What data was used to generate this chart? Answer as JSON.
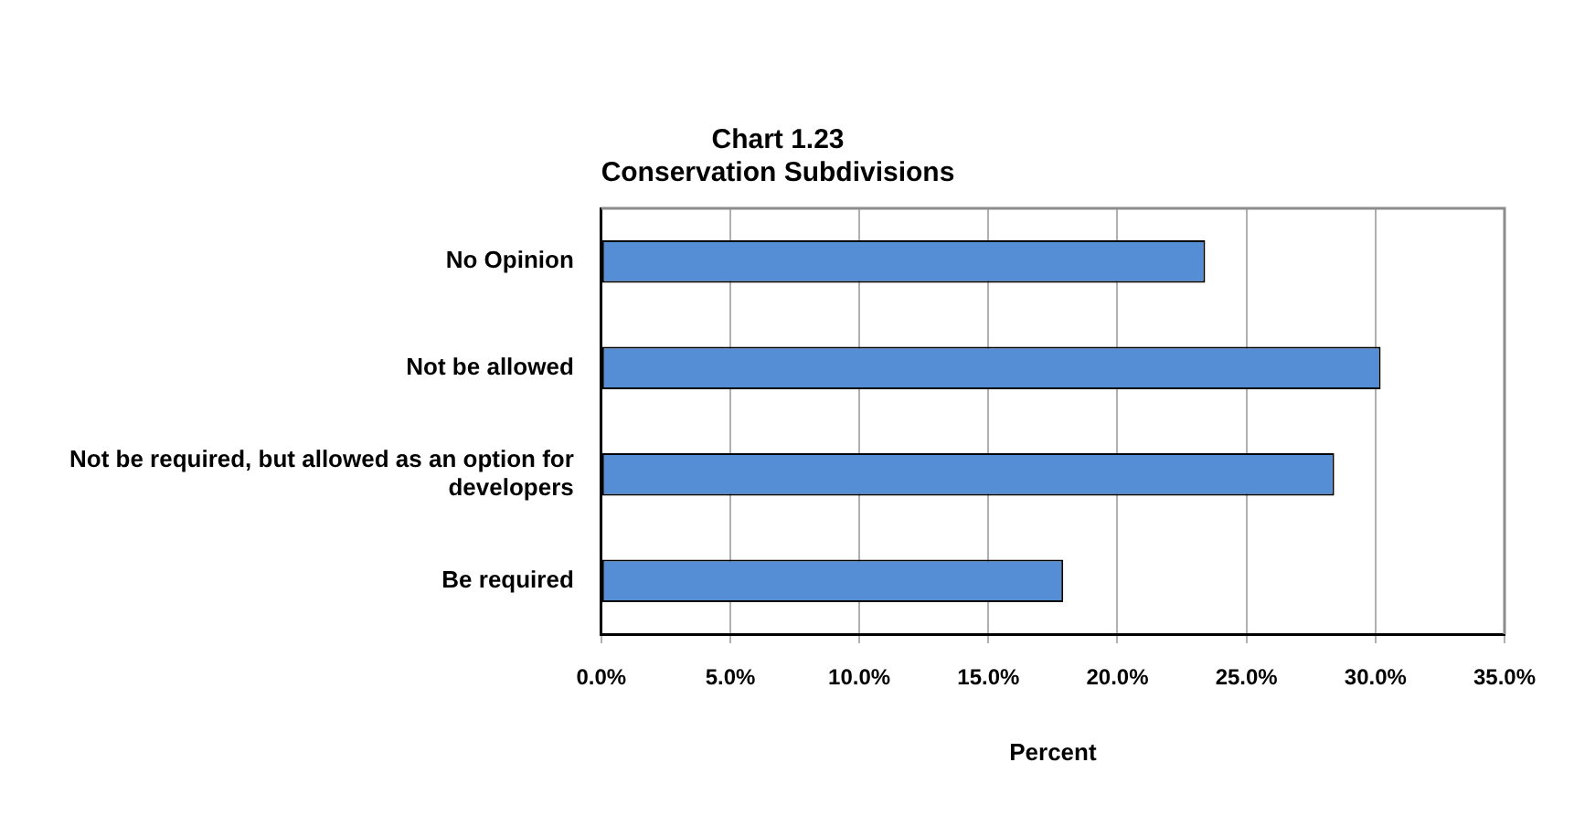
{
  "chart_data": {
    "type": "bar",
    "orientation": "horizontal",
    "title": [
      "Chart 1.23",
      "Conservation Subdivisions"
    ],
    "xlabel": "Percent",
    "categories": [
      "No Opinion",
      "Not be allowed",
      "Not be required, but allowed as an option for developers",
      "Be required"
    ],
    "values": [
      23.4,
      30.2,
      28.4,
      17.9
    ],
    "color": "#558ed5",
    "xlim": [
      0,
      35
    ],
    "xticks": [
      {
        "value": 0,
        "label": "0.0%"
      },
      {
        "value": 5,
        "label": "5.0%"
      },
      {
        "value": 10,
        "label": "10.0%"
      },
      {
        "value": 15,
        "label": "15.0%"
      },
      {
        "value": 20,
        "label": "20.0%"
      },
      {
        "value": 25,
        "label": "25.0%"
      },
      {
        "value": 30,
        "label": "30.0%"
      },
      {
        "value": 35,
        "label": "35.0%"
      }
    ],
    "grid": "x",
    "legend": false
  }
}
